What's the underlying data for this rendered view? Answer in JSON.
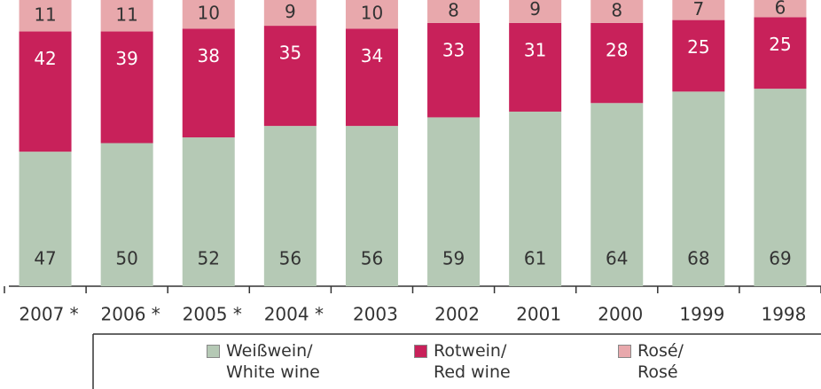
{
  "chart_data": {
    "type": "stacked_bar",
    "categories": [
      "2007 *",
      "2006 *",
      "2005 *",
      "2004 *",
      "2003",
      "2002",
      "2001",
      "2000",
      "1999",
      "1998"
    ],
    "series": [
      {
        "name": "Weißwein/\nWhite wine",
        "color": "#b5c9b5",
        "values": [
          47,
          50,
          52,
          56,
          56,
          59,
          61,
          64,
          68,
          69
        ]
      },
      {
        "name": "Rotwein/\nRed wine",
        "color": "#c8215a",
        "values": [
          42,
          39,
          38,
          35,
          34,
          33,
          31,
          28,
          25,
          25
        ]
      },
      {
        "name": "Rosé/\nRosé",
        "color": "#e8a8ac",
        "values": [
          11,
          11,
          10,
          9,
          10,
          8,
          9,
          8,
          7,
          6
        ]
      }
    ],
    "ylim": [
      0,
      100
    ]
  }
}
